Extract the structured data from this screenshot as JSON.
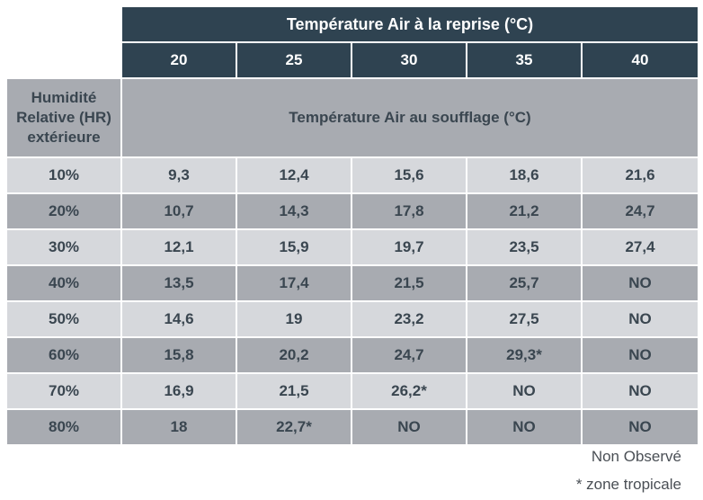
{
  "header": {
    "reprise_title": "Température Air à la reprise (°C)",
    "columns": [
      "20",
      "25",
      "30",
      "35",
      "40"
    ],
    "row_header": [
      "Humidité",
      "Relative (HR)",
      "extérieure"
    ],
    "soufflage_title": "Température Air au soufflage (°C)"
  },
  "rows": [
    {
      "hr": "10%",
      "values": [
        "9,3",
        "12,4",
        "15,6",
        "18,6",
        "21,6"
      ]
    },
    {
      "hr": "20%",
      "values": [
        "10,7",
        "14,3",
        "17,8",
        "21,2",
        "24,7"
      ]
    },
    {
      "hr": "30%",
      "values": [
        "12,1",
        "15,9",
        "19,7",
        "23,5",
        "27,4"
      ]
    },
    {
      "hr": "40%",
      "values": [
        "13,5",
        "17,4",
        "21,5",
        "25,7",
        "NO"
      ]
    },
    {
      "hr": "50%",
      "values": [
        "14,6",
        "19",
        "23,2",
        "27,5",
        "NO"
      ]
    },
    {
      "hr": "60%",
      "values": [
        "15,8",
        "20,2",
        "24,7",
        "29,3*",
        "NO"
      ]
    },
    {
      "hr": "70%",
      "values": [
        "16,9",
        "21,5",
        "26,2*",
        "NO",
        "NO"
      ]
    },
    {
      "hr": "80%",
      "values": [
        "18",
        "22,7*",
        "NO",
        "NO",
        "NO"
      ]
    }
  ],
  "footnotes": {
    "no": "Non Observé",
    "star": "* zone tropicale"
  },
  "colors": {
    "header_dark": "#2f4351",
    "gray": "#a8abb1",
    "light": "#d6d8dc",
    "text": "#3a4650"
  }
}
